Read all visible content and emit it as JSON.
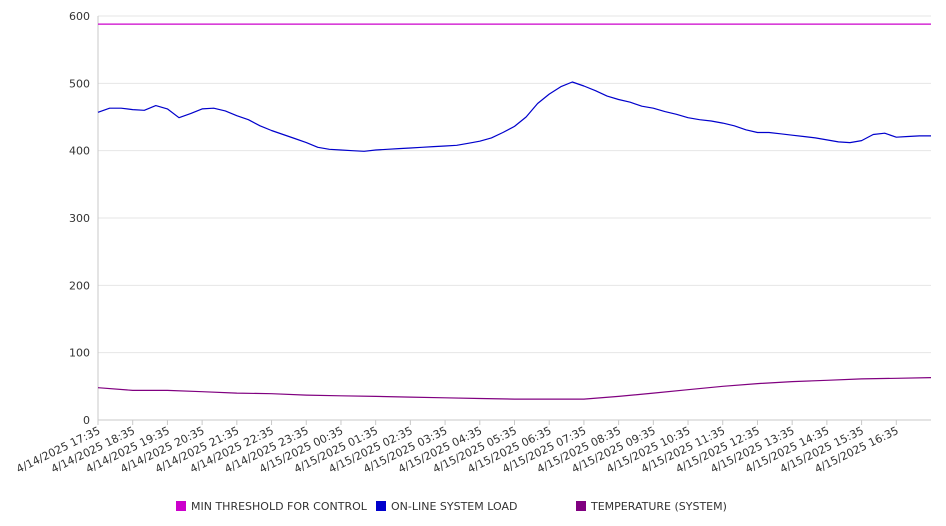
{
  "chart_data": {
    "type": "line",
    "title": "",
    "xlabel": "",
    "ylabel": "",
    "ylim": [
      0,
      600
    ],
    "yticks": [
      0,
      100,
      200,
      300,
      400,
      500,
      600
    ],
    "grid": true,
    "legend_position": "bottom",
    "x_tick_labels": [
      "4/14/2025 17:35",
      "4/14/2025 18:35",
      "4/14/2025 19:35",
      "4/14/2025 20:35",
      "4/14/2025 21:35",
      "4/14/2025 22:35",
      "4/14/2025 23:35",
      "4/15/2025 00:35",
      "4/15/2025 01:35",
      "4/15/2025 02:35",
      "4/15/2025 03:35",
      "4/15/2025 04:35",
      "4/15/2025 05:35",
      "4/15/2025 06:35",
      "4/15/2025 07:35",
      "4/15/2025 08:35",
      "4/15/2025 09:35",
      "4/15/2025 10:35",
      "4/15/2025 11:35",
      "4/15/2025 12:35",
      "4/15/2025 13:35",
      "4/15/2025 14:35",
      "4/15/2025 15:35",
      "4/15/2025 16:35"
    ],
    "series": [
      {
        "name": "MIN THRESHOLD FOR CONTROL",
        "color": "#cc00cc",
        "x": [
          "4/14/2025 17:35",
          "4/15/2025 17:35"
        ],
        "values": [
          588,
          588
        ]
      },
      {
        "name": "ON-LINE SYSTEM LOAD",
        "color": "#0000cc",
        "x": [
          "4/14/2025 17:35",
          "4/14/2025 17:55",
          "4/14/2025 18:15",
          "4/14/2025 18:35",
          "4/14/2025 18:55",
          "4/14/2025 19:15",
          "4/14/2025 19:35",
          "4/14/2025 19:55",
          "4/14/2025 20:15",
          "4/14/2025 20:35",
          "4/14/2025 20:55",
          "4/14/2025 21:15",
          "4/14/2025 21:35",
          "4/14/2025 21:55",
          "4/14/2025 22:15",
          "4/14/2025 22:35",
          "4/14/2025 22:55",
          "4/14/2025 23:15",
          "4/14/2025 23:35",
          "4/14/2025 23:55",
          "4/15/2025 00:15",
          "4/15/2025 00:35",
          "4/15/2025 00:55",
          "4/15/2025 01:15",
          "4/15/2025 01:35",
          "4/15/2025 01:55",
          "4/15/2025 02:15",
          "4/15/2025 02:35",
          "4/15/2025 02:55",
          "4/15/2025 03:15",
          "4/15/2025 03:35",
          "4/15/2025 03:55",
          "4/15/2025 04:15",
          "4/15/2025 04:35",
          "4/15/2025 04:55",
          "4/15/2025 05:15",
          "4/15/2025 05:35",
          "4/15/2025 05:55",
          "4/15/2025 06:15",
          "4/15/2025 06:35",
          "4/15/2025 06:55",
          "4/15/2025 07:15",
          "4/15/2025 07:35",
          "4/15/2025 07:55",
          "4/15/2025 08:15",
          "4/15/2025 08:35",
          "4/15/2025 08:55",
          "4/15/2025 09:15",
          "4/15/2025 09:35",
          "4/15/2025 09:55",
          "4/15/2025 10:15",
          "4/15/2025 10:35",
          "4/15/2025 10:55",
          "4/15/2025 11:15",
          "4/15/2025 11:35",
          "4/15/2025 11:55",
          "4/15/2025 12:15",
          "4/15/2025 12:35",
          "4/15/2025 12:55",
          "4/15/2025 13:15",
          "4/15/2025 13:35",
          "4/15/2025 13:55",
          "4/15/2025 14:15",
          "4/15/2025 14:35",
          "4/15/2025 14:55",
          "4/15/2025 15:15",
          "4/15/2025 15:35",
          "4/15/2025 15:55",
          "4/15/2025 16:15",
          "4/15/2025 16:35",
          "4/15/2025 16:55",
          "4/15/2025 17:15",
          "4/15/2025 17:35"
        ],
        "values": [
          457,
          463,
          463,
          461,
          460,
          467,
          462,
          449,
          455,
          462,
          463,
          459,
          452,
          446,
          437,
          430,
          424,
          418,
          412,
          405,
          402,
          401,
          400,
          399,
          401,
          402,
          403,
          404,
          405,
          406,
          407,
          408,
          411,
          414,
          419,
          427,
          436,
          450,
          470,
          484,
          495,
          502,
          496,
          489,
          481,
          476,
          472,
          466,
          463,
          458,
          454,
          449,
          446,
          444,
          441,
          437,
          431,
          427,
          427,
          425,
          423,
          421,
          419,
          416,
          413,
          412,
          415,
          424,
          426,
          420,
          421,
          422,
          422
        ]
      },
      {
        "name": "TEMPERATURE (SYSTEM)",
        "color": "#800080",
        "x": [
          "4/14/2025 17:35",
          "4/14/2025 18:35",
          "4/14/2025 19:35",
          "4/14/2025 20:35",
          "4/14/2025 21:35",
          "4/14/2025 22:35",
          "4/14/2025 23:35",
          "4/15/2025 00:35",
          "4/15/2025 01:35",
          "4/15/2025 02:35",
          "4/15/2025 03:35",
          "4/15/2025 04:35",
          "4/15/2025 05:35",
          "4/15/2025 06:35",
          "4/15/2025 07:35",
          "4/15/2025 08:35",
          "4/15/2025 09:35",
          "4/15/2025 10:35",
          "4/15/2025 11:35",
          "4/15/2025 12:35",
          "4/15/2025 13:35",
          "4/15/2025 14:35",
          "4/15/2025 15:35",
          "4/15/2025 16:35",
          "4/15/2025 17:35"
        ],
        "values": [
          48,
          44,
          44,
          42,
          40,
          39,
          37,
          36,
          35,
          34,
          33,
          32,
          31,
          31,
          31,
          35,
          40,
          45,
          50,
          54,
          57,
          59,
          61,
          62,
          63
        ]
      }
    ]
  }
}
